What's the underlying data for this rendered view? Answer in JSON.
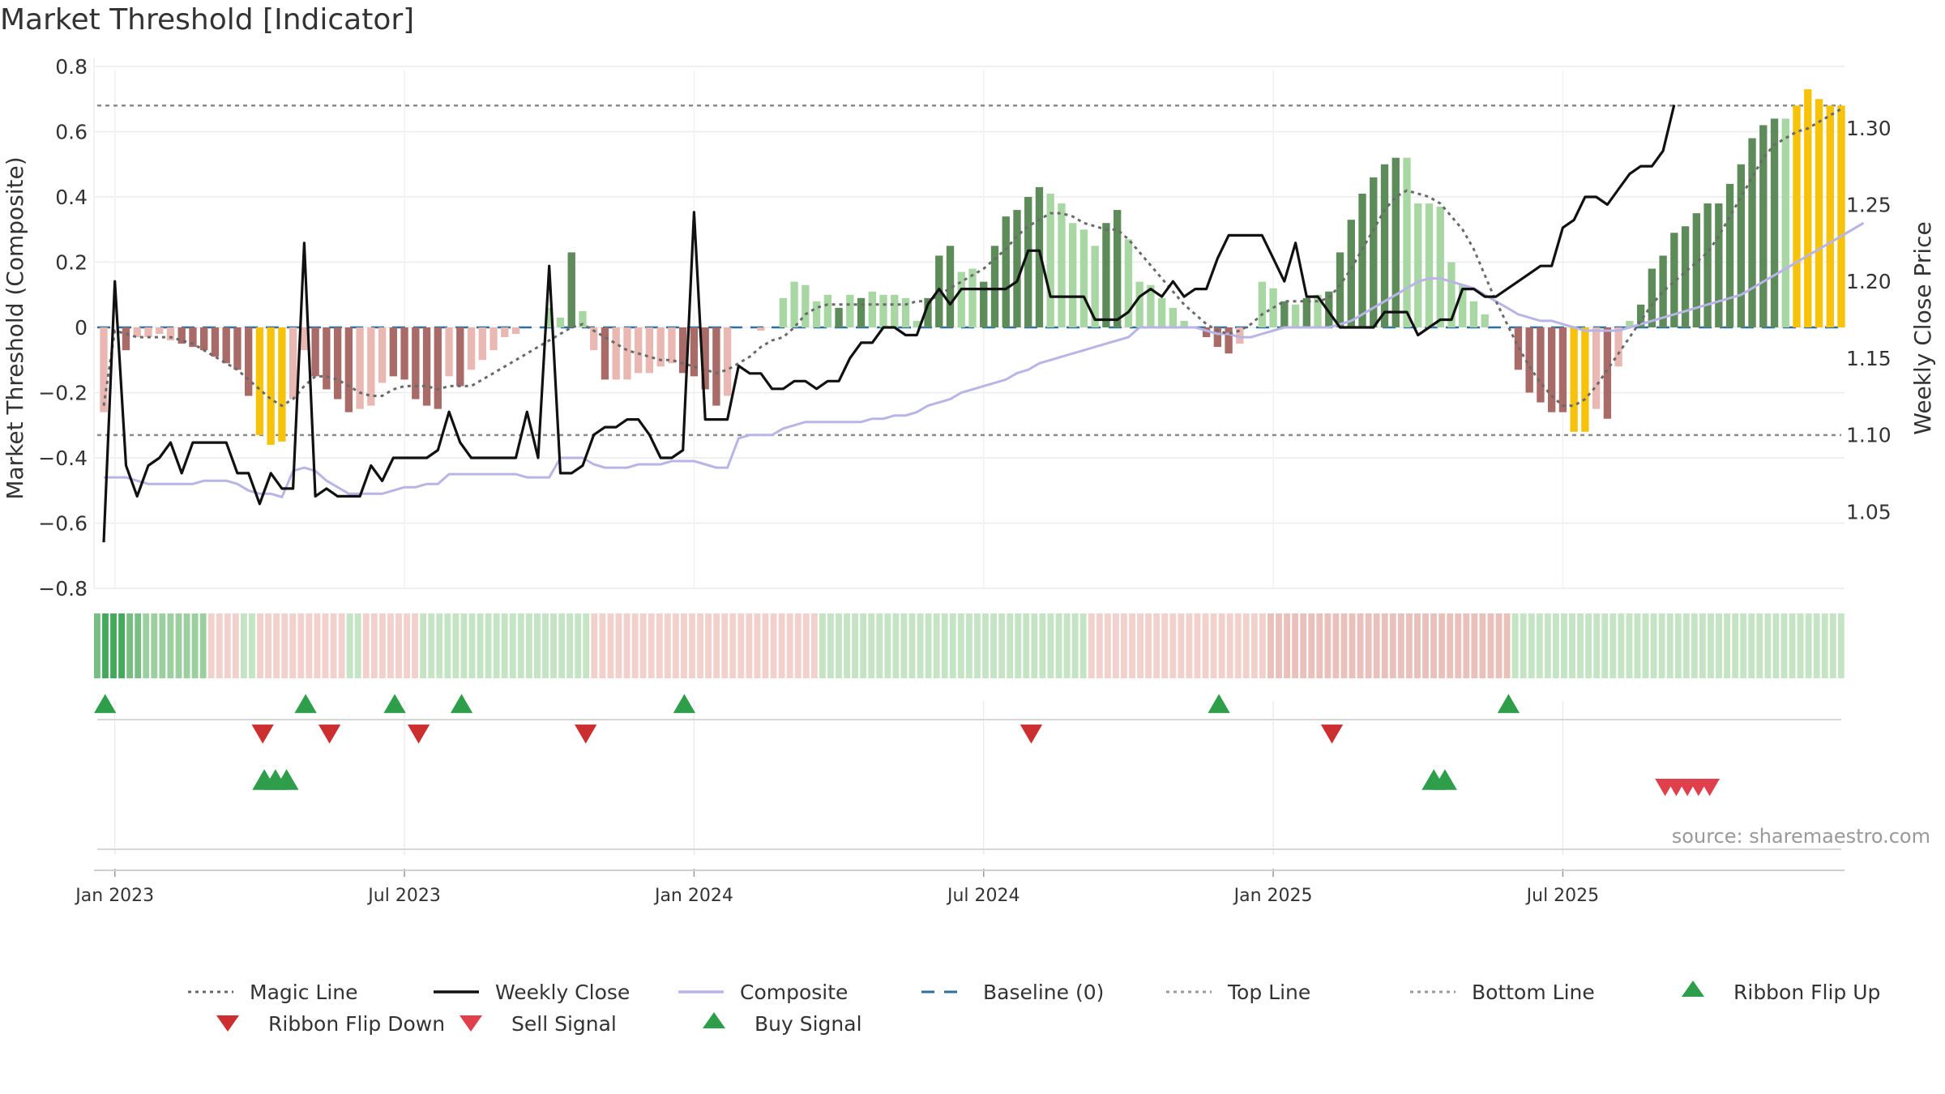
{
  "chart_data": {
    "type": "bar",
    "title": "Market Threshold [Indicator]",
    "ylabel": "Market Threshold (Composite)",
    "y2label": "Weekly Close Price",
    "source": "source: sharemaestro.com",
    "ylim": [
      -0.8,
      0.8
    ],
    "y2lim": [
      1.0,
      1.34
    ],
    "y_ticks": [
      "0.8",
      "0.6",
      "0.4",
      "0.2",
      "0",
      "−0.2",
      "−0.4",
      "−0.6",
      "−0.8"
    ],
    "y_tick_values": [
      0.8,
      0.6,
      0.4,
      0.2,
      0,
      -0.2,
      -0.4,
      -0.6,
      -0.8
    ],
    "y2_ticks": [
      "1.30",
      "1.25",
      "1.20",
      "1.15",
      "1.10",
      "1.05"
    ],
    "y2_tick_values": [
      1.3,
      1.25,
      1.2,
      1.15,
      1.1,
      1.05
    ],
    "x_ticks": [
      "Jan 2023",
      "Jul 2023",
      "Jan 2024",
      "Jul 2024",
      "Jan 2025",
      "Jul 2025"
    ],
    "x_tick_weeks": [
      1,
      27,
      53,
      79,
      105,
      131
    ],
    "top_line": 0.68,
    "bottom_line": -0.33,
    "composite_bars": [
      -0.26,
      0.0,
      -0.07,
      -0.03,
      -0.03,
      -0.02,
      -0.04,
      -0.05,
      -0.06,
      -0.07,
      -0.09,
      -0.11,
      -0.13,
      -0.21,
      -0.33,
      -0.36,
      -0.35,
      -0.22,
      -0.07,
      -0.15,
      -0.19,
      -0.22,
      -0.26,
      -0.25,
      -0.24,
      -0.17,
      -0.15,
      -0.16,
      -0.22,
      -0.24,
      -0.25,
      -0.15,
      -0.18,
      -0.13,
      -0.1,
      -0.07,
      -0.03,
      -0.02,
      0.0,
      0.0,
      0.06,
      0.03,
      0.23,
      0.05,
      -0.07,
      -0.16,
      -0.16,
      -0.16,
      -0.14,
      -0.14,
      -0.12,
      -0.11,
      -0.14,
      -0.15,
      -0.19,
      -0.24,
      -0.21,
      0.0,
      0.0,
      -0.01,
      0.0,
      0.09,
      0.14,
      0.13,
      0.08,
      0.1,
      0.06,
      0.1,
      0.09,
      0.11,
      0.1,
      0.1,
      0.09,
      0.02,
      0.09,
      0.22,
      0.25,
      0.17,
      0.18,
      0.14,
      0.25,
      0.34,
      0.36,
      0.4,
      0.43,
      0.41,
      0.38,
      0.32,
      0.3,
      0.25,
      0.32,
      0.36,
      0.27,
      0.14,
      0.13,
      0.09,
      0.06,
      0.02,
      0.0,
      -0.03,
      -0.06,
      -0.08,
      -0.05,
      0.0,
      0.14,
      0.12,
      0.08,
      0.07,
      0.09,
      0.1,
      0.11,
      0.23,
      0.33,
      0.41,
      0.46,
      0.5,
      0.52,
      0.52,
      0.38,
      0.38,
      0.37,
      0.2,
      0.13,
      0.08,
      0.04,
      0.0,
      0.0,
      -0.13,
      -0.2,
      -0.23,
      -0.26,
      -0.26,
      -0.32,
      -0.32,
      -0.25,
      -0.28,
      -0.12,
      0.02,
      0.07,
      0.18,
      0.22,
      0.29,
      0.31,
      0.35,
      0.38,
      0.38,
      0.44,
      0.5,
      0.58,
      0.62,
      0.64,
      0.64,
      0.68,
      0.73,
      0.7,
      0.68,
      0.68
    ],
    "bar_colors": [
      "lightred",
      "lightred",
      "darkred",
      "lightred",
      "lightred",
      "lightred",
      "lightred",
      "darkred",
      "darkred",
      "darkred",
      "darkred",
      "darkred",
      "darkred",
      "darkred",
      "yellow",
      "yellow",
      "yellow",
      "lightred",
      "lightred",
      "darkred",
      "darkred",
      "darkred",
      "darkred",
      "lightred",
      "lightred",
      "lightred",
      "darkred",
      "darkred",
      "darkred",
      "darkred",
      "darkred",
      "lightred",
      "darkred",
      "lightred",
      "lightred",
      "lightred",
      "lightred",
      "lightred",
      "lightred",
      "lightred",
      "lightgreen",
      "lightgreen",
      "darkgreen",
      "lightgreen",
      "lightred",
      "darkred",
      "lightred",
      "lightred",
      "lightred",
      "lightred",
      "lightred",
      "lightred",
      "darkred",
      "darkred",
      "darkred",
      "darkred",
      "lightred",
      "lightred",
      "lightred",
      "lightred",
      "lightred",
      "lightgreen",
      "lightgreen",
      "lightgreen",
      "lightgreen",
      "lightgreen",
      "darkgreen",
      "lightgreen",
      "darkgreen",
      "lightgreen",
      "lightgreen",
      "lightgreen",
      "lightgreen",
      "lightgreen",
      "darkgreen",
      "darkgreen",
      "darkgreen",
      "lightgreen",
      "lightgreen",
      "darkgreen",
      "darkgreen",
      "darkgreen",
      "darkgreen",
      "darkgreen",
      "darkgreen",
      "lightgreen",
      "lightgreen",
      "lightgreen",
      "lightgreen",
      "lightgreen",
      "darkgreen",
      "darkgreen",
      "lightgreen",
      "lightgreen",
      "lightgreen",
      "lightgreen",
      "lightgreen",
      "lightgreen",
      "lightgreen",
      "darkred",
      "darkred",
      "darkred",
      "lightred",
      "lightred",
      "lightgreen",
      "lightgreen",
      "darkgreen",
      "lightgreen",
      "darkgreen",
      "lightgreen",
      "darkgreen",
      "darkgreen",
      "darkgreen",
      "darkgreen",
      "darkgreen",
      "darkgreen",
      "darkgreen",
      "lightgreen",
      "lightgreen",
      "lightgreen",
      "lightgreen",
      "lightgreen",
      "lightgreen",
      "lightgreen",
      "lightgreen",
      "lightgreen",
      "lightgreen",
      "darkred",
      "darkred",
      "darkred",
      "darkred",
      "darkred",
      "yellow",
      "yellow",
      "lightred",
      "darkred",
      "lightred",
      "lightgreen",
      "darkgreen",
      "darkgreen",
      "darkgreen",
      "darkgreen",
      "darkgreen",
      "darkgreen",
      "darkgreen",
      "darkgreen",
      "darkgreen",
      "darkgreen",
      "darkgreen",
      "darkgreen",
      "darkgreen",
      "lightgreen",
      "yellow",
      "yellow",
      "yellow",
      "yellow",
      "yellow"
    ],
    "magic_line": [
      -0.24,
      -0.01,
      -0.02,
      -0.03,
      -0.03,
      -0.03,
      -0.03,
      -0.04,
      -0.05,
      -0.07,
      -0.09,
      -0.11,
      -0.13,
      -0.16,
      -0.19,
      -0.22,
      -0.24,
      -0.22,
      -0.18,
      -0.15,
      -0.15,
      -0.16,
      -0.18,
      -0.2,
      -0.21,
      -0.21,
      -0.19,
      -0.18,
      -0.18,
      -0.18,
      -0.19,
      -0.18,
      -0.18,
      -0.18,
      -0.16,
      -0.14,
      -0.12,
      -0.1,
      -0.08,
      -0.06,
      -0.04,
      -0.02,
      0.0,
      0.01,
      -0.01,
      -0.03,
      -0.05,
      -0.07,
      -0.08,
      -0.09,
      -0.1,
      -0.1,
      -0.11,
      -0.12,
      -0.13,
      -0.14,
      -0.13,
      -0.11,
      -0.09,
      -0.06,
      -0.04,
      -0.03,
      0.0,
      0.04,
      0.06,
      0.07,
      0.07,
      0.07,
      0.07,
      0.07,
      0.07,
      0.07,
      0.07,
      0.08,
      0.08,
      0.1,
      0.12,
      0.14,
      0.16,
      0.18,
      0.21,
      0.24,
      0.28,
      0.31,
      0.33,
      0.35,
      0.35,
      0.34,
      0.32,
      0.31,
      0.3,
      0.3,
      0.27,
      0.23,
      0.19,
      0.15,
      0.11,
      0.07,
      0.04,
      0.01,
      -0.01,
      -0.02,
      -0.01,
      0.01,
      0.04,
      0.06,
      0.08,
      0.08,
      0.08,
      0.08,
      0.09,
      0.13,
      0.18,
      0.24,
      0.3,
      0.36,
      0.4,
      0.42,
      0.41,
      0.4,
      0.38,
      0.34,
      0.3,
      0.24,
      0.16,
      0.08,
      0.01,
      -0.06,
      -0.12,
      -0.17,
      -0.21,
      -0.24,
      -0.24,
      -0.22,
      -0.18,
      -0.13,
      -0.08,
      -0.03,
      0.02,
      0.07,
      0.11,
      0.14,
      0.17,
      0.2,
      0.23,
      0.28,
      0.34,
      0.4,
      0.46,
      0.52,
      0.56,
      0.58,
      0.6,
      0.61,
      0.63,
      0.65,
      0.67
    ],
    "composite_line": [
      -0.46,
      -0.46,
      -0.46,
      -0.47,
      -0.48,
      -0.48,
      -0.48,
      -0.48,
      -0.48,
      -0.47,
      -0.47,
      -0.47,
      -0.48,
      -0.5,
      -0.51,
      -0.51,
      -0.52,
      -0.44,
      -0.43,
      -0.44,
      -0.47,
      -0.49,
      -0.51,
      -0.51,
      -0.51,
      -0.51,
      -0.5,
      -0.49,
      -0.49,
      -0.48,
      -0.48,
      -0.45,
      -0.45,
      -0.45,
      -0.45,
      -0.45,
      -0.45,
      -0.45,
      -0.46,
      -0.46,
      -0.46,
      -0.4,
      -0.4,
      -0.4,
      -0.42,
      -0.43,
      -0.43,
      -0.43,
      -0.42,
      -0.42,
      -0.42,
      -0.41,
      -0.41,
      -0.41,
      -0.42,
      -0.43,
      -0.43,
      -0.34,
      -0.33,
      -0.33,
      -0.33,
      -0.31,
      -0.3,
      -0.29,
      -0.29,
      -0.29,
      -0.29,
      -0.29,
      -0.29,
      -0.28,
      -0.28,
      -0.27,
      -0.27,
      -0.26,
      -0.24,
      -0.23,
      -0.22,
      -0.2,
      -0.19,
      -0.18,
      -0.17,
      -0.16,
      -0.14,
      -0.13,
      -0.11,
      -0.1,
      -0.09,
      -0.08,
      -0.07,
      -0.06,
      -0.05,
      -0.04,
      -0.03,
      0.0,
      0.0,
      0.0,
      0.0,
      0.0,
      0.0,
      -0.01,
      -0.02,
      -0.02,
      -0.03,
      -0.03,
      -0.02,
      -0.01,
      0.0,
      0.0,
      0.0,
      0.0,
      0.0,
      0.01,
      0.02,
      0.04,
      0.06,
      0.08,
      0.1,
      0.12,
      0.14,
      0.15,
      0.15,
      0.14,
      0.13,
      0.12,
      0.1,
      0.08,
      0.06,
      0.04,
      0.03,
      0.02,
      0.02,
      0.01,
      0.0,
      -0.01,
      -0.01,
      -0.01,
      -0.01,
      0.0,
      0.01,
      0.02,
      0.03,
      0.04,
      0.05,
      0.06,
      0.07,
      0.08,
      0.09,
      0.1,
      0.12,
      0.14,
      0.16,
      0.18,
      0.2,
      0.22,
      0.24,
      0.26,
      0.28,
      0.3,
      0.32
    ],
    "weekly_close": [
      1.03,
      1.2,
      1.08,
      1.06,
      1.08,
      1.085,
      1.095,
      1.075,
      1.095,
      1.095,
      1.095,
      1.095,
      1.075,
      1.075,
      1.055,
      1.075,
      1.065,
      1.065,
      1.225,
      1.06,
      1.065,
      1.06,
      1.06,
      1.06,
      1.08,
      1.07,
      1.085,
      1.085,
      1.085,
      1.085,
      1.09,
      1.115,
      1.095,
      1.085,
      1.085,
      1.085,
      1.085,
      1.085,
      1.115,
      1.085,
      1.21,
      1.075,
      1.075,
      1.08,
      1.1,
      1.105,
      1.105,
      1.11,
      1.11,
      1.1,
      1.085,
      1.085,
      1.09,
      1.245,
      1.11,
      1.11,
      1.11,
      1.145,
      1.14,
      1.14,
      1.13,
      1.13,
      1.135,
      1.135,
      1.13,
      1.135,
      1.135,
      1.15,
      1.16,
      1.16,
      1.17,
      1.17,
      1.165,
      1.165,
      1.185,
      1.195,
      1.185,
      1.195,
      1.195,
      1.195,
      1.195,
      1.195,
      1.2,
      1.22,
      1.22,
      1.19,
      1.19,
      1.19,
      1.19,
      1.175,
      1.175,
      1.175,
      1.18,
      1.19,
      1.195,
      1.19,
      1.2,
      1.19,
      1.195,
      1.195,
      1.215,
      1.23,
      1.23,
      1.23,
      1.23,
      1.215,
      1.2,
      1.225,
      1.19,
      1.19,
      1.18,
      1.17,
      1.17,
      1.17,
      1.17,
      1.18,
      1.18,
      1.18,
      1.165,
      1.17,
      1.175,
      1.175,
      1.195,
      1.195,
      1.19,
      1.19,
      1.195,
      1.2,
      1.205,
      1.21,
      1.21,
      1.235,
      1.24,
      1.255,
      1.255,
      1.25,
      1.26,
      1.27,
      1.275,
      1.275,
      1.285,
      1.315
    ],
    "ribbon_colors": [
      "c1",
      "c0",
      "c0",
      "c0",
      "c1",
      "c1",
      "c2",
      "c2",
      "c2",
      "c2",
      "c2",
      "c2",
      "c2",
      "c2",
      "r1",
      "r1",
      "r1",
      "r1",
      "g3",
      "g3",
      "r1",
      "r1",
      "r1",
      "r1",
      "r1",
      "r1",
      "r1",
      "r1",
      "r1",
      "r1",
      "r1",
      "g3",
      "g3",
      "r1",
      "r1",
      "r1",
      "r1",
      "r1",
      "r1",
      "r1",
      "g3",
      "g3",
      "g3",
      "g3",
      "g3",
      "g3",
      "g3",
      "g3",
      "g3",
      "g3",
      "g3",
      "g3",
      "g3",
      "g3",
      "g3",
      "g3",
      "g3",
      "g3",
      "g3",
      "g3",
      "g3",
      "r1",
      "r1",
      "r1",
      "r1",
      "r1",
      "r1",
      "r1",
      "r1",
      "r1",
      "r1",
      "r1",
      "r1",
      "r1",
      "r1",
      "r1",
      "r1",
      "r1",
      "r1",
      "r1",
      "r1",
      "r1",
      "r1",
      "r1",
      "r1",
      "r1",
      "r1",
      "r1",
      "r1",
      "g3",
      "g3",
      "g3",
      "g3",
      "g3",
      "g3",
      "g3",
      "g3",
      "g3",
      "g3",
      "g3",
      "g3",
      "g3",
      "g3",
      "g3",
      "g3",
      "g3",
      "g3",
      "g3",
      "g3",
      "g3",
      "g3",
      "g3",
      "g3",
      "g3",
      "g3",
      "g3",
      "g3",
      "g3",
      "g3",
      "g3",
      "g3",
      "g3",
      "r1",
      "r1",
      "r1",
      "r1",
      "r1",
      "r1",
      "r1",
      "r1",
      "r1",
      "r1",
      "r1",
      "r1",
      "r1",
      "r1",
      "r1",
      "r1",
      "r1",
      "r1",
      "r1",
      "r1",
      "r1",
      "r1",
      "r2",
      "r2",
      "r2",
      "r2",
      "r2",
      "r2",
      "r2",
      "r2",
      "r2",
      "r2",
      "r2",
      "r2",
      "r2",
      "r2",
      "r2",
      "r2",
      "r2",
      "r2",
      "r2",
      "r2",
      "r2",
      "r2",
      "r2",
      "r2",
      "r2",
      "r2",
      "r2",
      "r2",
      "r2",
      "r2",
      "g3",
      "g3",
      "g3",
      "g3",
      "g3",
      "g3",
      "g3",
      "g3",
      "g3",
      "g3",
      "g3",
      "g3",
      "g3",
      "g3",
      "g3",
      "g3",
      "g3",
      "g3",
      "g3",
      "g3",
      "g3",
      "g3",
      "g3",
      "g3",
      "g3",
      "g3",
      "g3",
      "g3",
      "g3",
      "g3",
      "g3",
      "g3",
      "g3",
      "g3",
      "g3",
      "g3",
      "g3",
      "g3",
      "g3",
      "g3",
      "g3"
    ],
    "ribbon_flip_up_weeks": [
      1,
      19,
      27,
      33,
      53,
      101,
      127
    ],
    "ribbon_flip_down_weeks": [
      15,
      21,
      29,
      44,
      84,
      111
    ],
    "buy_signal_weeks": [
      15,
      16,
      17,
      120,
      121
    ],
    "sell_signal_weeks": [
      138,
      139,
      140,
      141,
      142
    ],
    "legend": [
      {
        "label": "Magic Line",
        "kind": "dotted",
        "color": "#666666"
      },
      {
        "label": "Weekly Close",
        "kind": "solid",
        "color": "#111111"
      },
      {
        "label": "Composite",
        "kind": "solid",
        "color": "#b9b4e6"
      },
      {
        "label": "Baseline (0)",
        "kind": "dashed",
        "color": "#2f6f9f"
      },
      {
        "label": "Top Line",
        "kind": "dotted",
        "color": "#999999"
      },
      {
        "label": "Bottom Line",
        "kind": "dotted",
        "color": "#999999"
      },
      {
        "label": "Ribbon Flip Up",
        "kind": "tri-up",
        "color": "#2e9e4a"
      },
      {
        "label": "Ribbon Flip Down",
        "kind": "tri-down",
        "color": "#cc2f2f"
      },
      {
        "label": "Sell Signal",
        "kind": "tri-down",
        "color": "#e0404c"
      },
      {
        "label": "Buy Signal",
        "kind": "tri-up",
        "color": "#2e9e4a"
      }
    ],
    "colors": {
      "darkgreen": "#5d8b59",
      "lightgreen": "#a9d7a3",
      "darkred": "#a86b68",
      "lightred": "#eab8b3",
      "yellow": "#f6c20a",
      "top_bottom": "#8a8a8a"
    }
  }
}
